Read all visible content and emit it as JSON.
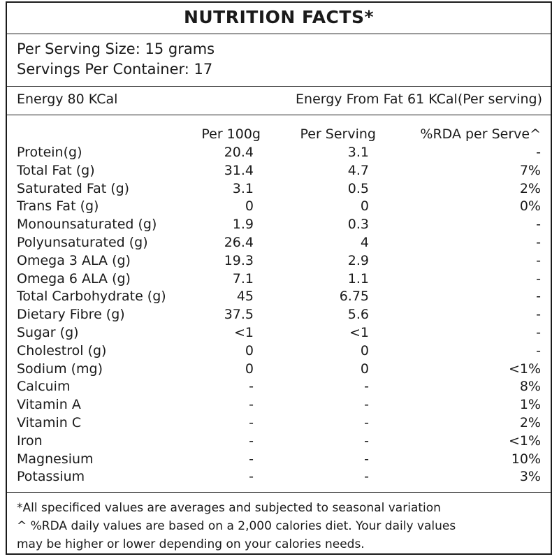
{
  "title": "NUTRITION FACTS*",
  "serving_size": "Per Serving Size: 15 grams",
  "servings_per_container": "Servings Per Container: 17",
  "energy": "Energy 80 KCal",
  "energy_from_fat": "Energy From Fat 61 KCal(Per serving)",
  "columns": {
    "per_100g": "Per 100g",
    "per_serving": "Per Serving",
    "rda": "%RDA per Serve^"
  },
  "rows": [
    {
      "name": "Protein(g)",
      "per_100g": "20.4",
      "per_serving": "3.1",
      "rda": "-"
    },
    {
      "name": "Total Fat (g)",
      "per_100g": "31.4",
      "per_serving": "4.7",
      "rda": "7%"
    },
    {
      "name": "Saturated Fat (g)",
      "per_100g": "3.1",
      "per_serving": "0.5",
      "rda": "2%"
    },
    {
      "name": "Trans Fat (g)",
      "per_100g": "0",
      "per_serving": "0",
      "rda": "0%"
    },
    {
      "name": "Monounsaturated (g)",
      "per_100g": "1.9",
      "per_serving": "0.3",
      "rda": "-"
    },
    {
      "name": "Polyunsaturated (g)",
      "per_100g": "26.4",
      "per_serving": "4",
      "rda": "-"
    },
    {
      "name": "Omega 3 ALA (g)",
      "per_100g": "19.3",
      "per_serving": "2.9",
      "rda": "-"
    },
    {
      "name": "Omega 6 ALA (g)",
      "per_100g": "7.1",
      "per_serving": "1.1",
      "rda": "-"
    },
    {
      "name": "Total Carbohydrate (g)",
      "per_100g": "45",
      "per_serving": "6.75",
      "rda": "-"
    },
    {
      "name": "Dietary Fibre (g)",
      "per_100g": "37.5",
      "per_serving": "5.6",
      "rda": "-"
    },
    {
      "name": "Sugar (g)",
      "per_100g": "<1",
      "per_serving": "<1",
      "rda": "-"
    },
    {
      "name": "Cholestrol (g)",
      "per_100g": "0",
      "per_serving": "0",
      "rda": "-"
    },
    {
      "name": "Sodium (mg)",
      "per_100g": "0",
      "per_serving": "0",
      "rda": "<1%"
    },
    {
      "name": "Calcuim",
      "per_100g": "-",
      "per_serving": "-",
      "rda": "8%"
    },
    {
      "name": "Vitamin A",
      "per_100g": "-",
      "per_serving": "-",
      "rda": "1%"
    },
    {
      "name": "Vitamin C",
      "per_100g": "-",
      "per_serving": "-",
      "rda": "2%"
    },
    {
      "name": "Iron",
      "per_100g": "-",
      "per_serving": "-",
      "rda": "<1%"
    },
    {
      "name": "Magnesium",
      "per_100g": "-",
      "per_serving": "-",
      "rda": "10%"
    },
    {
      "name": "Potassium",
      "per_100g": "-",
      "per_serving": "-",
      "rda": "3%"
    }
  ],
  "footnotes": [
    "*All specificed values are averages and subjected to seasonal variation",
    "^ %RDA daily values are based on a 2,000 calories diet. Your daily values",
    "may be higher or lower depending on your calories needs."
  ]
}
